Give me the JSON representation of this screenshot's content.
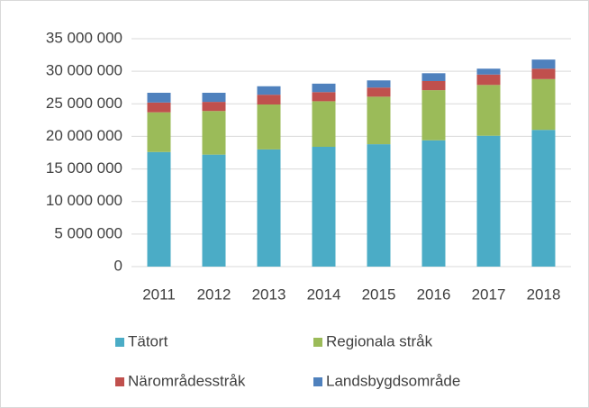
{
  "chart_data": {
    "type": "stacked-bar",
    "categories": [
      "2011",
      "2012",
      "2013",
      "2014",
      "2015",
      "2016",
      "2017",
      "2018"
    ],
    "series": [
      {
        "name": "Tätort",
        "color": "#4bacc6",
        "values": [
          17600000,
          17200000,
          18000000,
          18400000,
          18800000,
          19400000,
          20100000,
          21000000
        ]
      },
      {
        "name": "Regionala stråk",
        "color": "#9bbb59",
        "values": [
          6100000,
          6700000,
          6900000,
          7000000,
          7300000,
          7700000,
          7800000,
          7800000
        ]
      },
      {
        "name": "Närområdesstråk",
        "color": "#c0504d",
        "values": [
          1500000,
          1400000,
          1500000,
          1400000,
          1400000,
          1400000,
          1600000,
          1600000
        ]
      },
      {
        "name": "Landsbygdsområde",
        "color": "#4f81bd",
        "values": [
          1500000,
          1400000,
          1300000,
          1300000,
          1100000,
          1200000,
          900000,
          1400000
        ]
      }
    ],
    "ylim": [
      0,
      35000000
    ],
    "yticks": [
      0,
      {
        "value": 5000000,
        "label": "5 000 000"
      },
      {
        "value": 10000000,
        "label": "10 000 000"
      },
      {
        "value": 15000000,
        "label": "15 000 000"
      },
      {
        "value": 20000000,
        "label": "20 000 000"
      },
      {
        "value": 25000000,
        "label": "25 000 000"
      },
      {
        "value": 30000000,
        "label": "30 000 000"
      },
      {
        "value": 35000000,
        "label": "35 000 000"
      }
    ],
    "grid": true,
    "legend": "bottom"
  }
}
